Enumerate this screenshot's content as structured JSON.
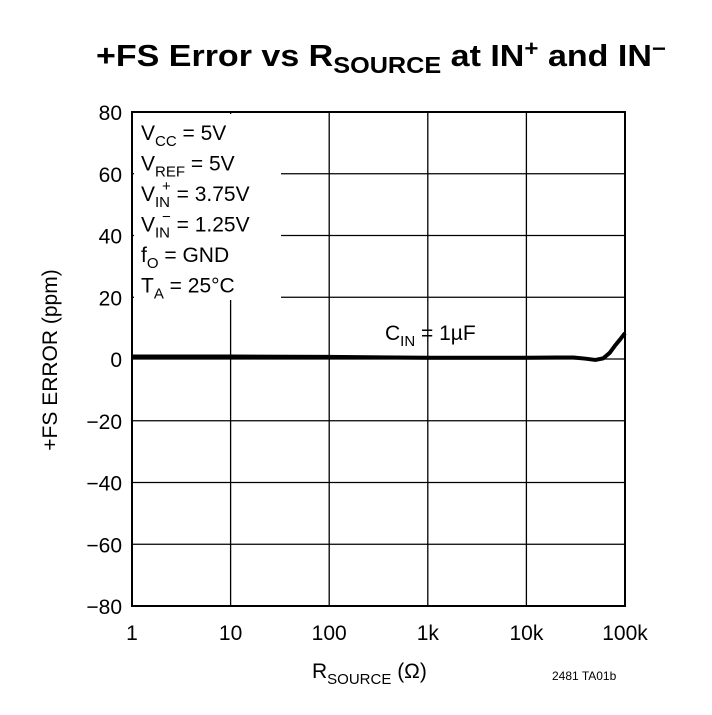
{
  "chart_data": {
    "type": "line",
    "title": [
      "+FS Error vs R",
      "SOURCE",
      " at IN",
      "+",
      " and IN",
      "−"
    ],
    "x_label": [
      "R",
      "SOURCE",
      " (Ω)"
    ],
    "y_label": "+FS ERROR (ppm)",
    "annotations": [
      [
        "V",
        "CC",
        " = 5V"
      ],
      [
        "V",
        "REF",
        " = 5V"
      ],
      [
        "V",
        "IN",
        "+",
        " = 3.75V"
      ],
      [
        "V",
        "IN",
        "−",
        " = 1.25V"
      ],
      [
        "f",
        "O",
        " = GND"
      ],
      [
        "T",
        "A",
        " = 25°C"
      ]
    ],
    "curve_label": [
      "C",
      "IN",
      " = 1µF"
    ],
    "footnote": "2481 TA01b",
    "log_x": true,
    "grid": true,
    "xlim": [
      1,
      100000
    ],
    "xticks": [
      1,
      10,
      100,
      {
        "value": 1000,
        "label": "1k"
      },
      {
        "value": 10000,
        "label": "10k"
      },
      {
        "value": 100000,
        "label": "100k"
      }
    ],
    "ylim": [
      -80,
      80
    ],
    "yticks": [
      {
        "value": -80,
        "label": "−80"
      },
      {
        "value": -60,
        "label": "−60"
      },
      {
        "value": -40,
        "label": "−40"
      },
      {
        "value": -20,
        "label": "−20"
      },
      0,
      20,
      40,
      60,
      80
    ],
    "x": [
      1,
      10,
      100,
      1000,
      10000,
      20000,
      30000,
      40000,
      50000,
      60000,
      70000,
      80000,
      90000,
      100000
    ],
    "series": [
      {
        "color": "#000000",
        "values": [
          0.8,
          0.8,
          0.7,
          0.4,
          0.4,
          0.5,
          0.5,
          0.1,
          -0.3,
          0.2,
          2,
          4.5,
          6.5,
          8.4
        ]
      }
    ]
  }
}
